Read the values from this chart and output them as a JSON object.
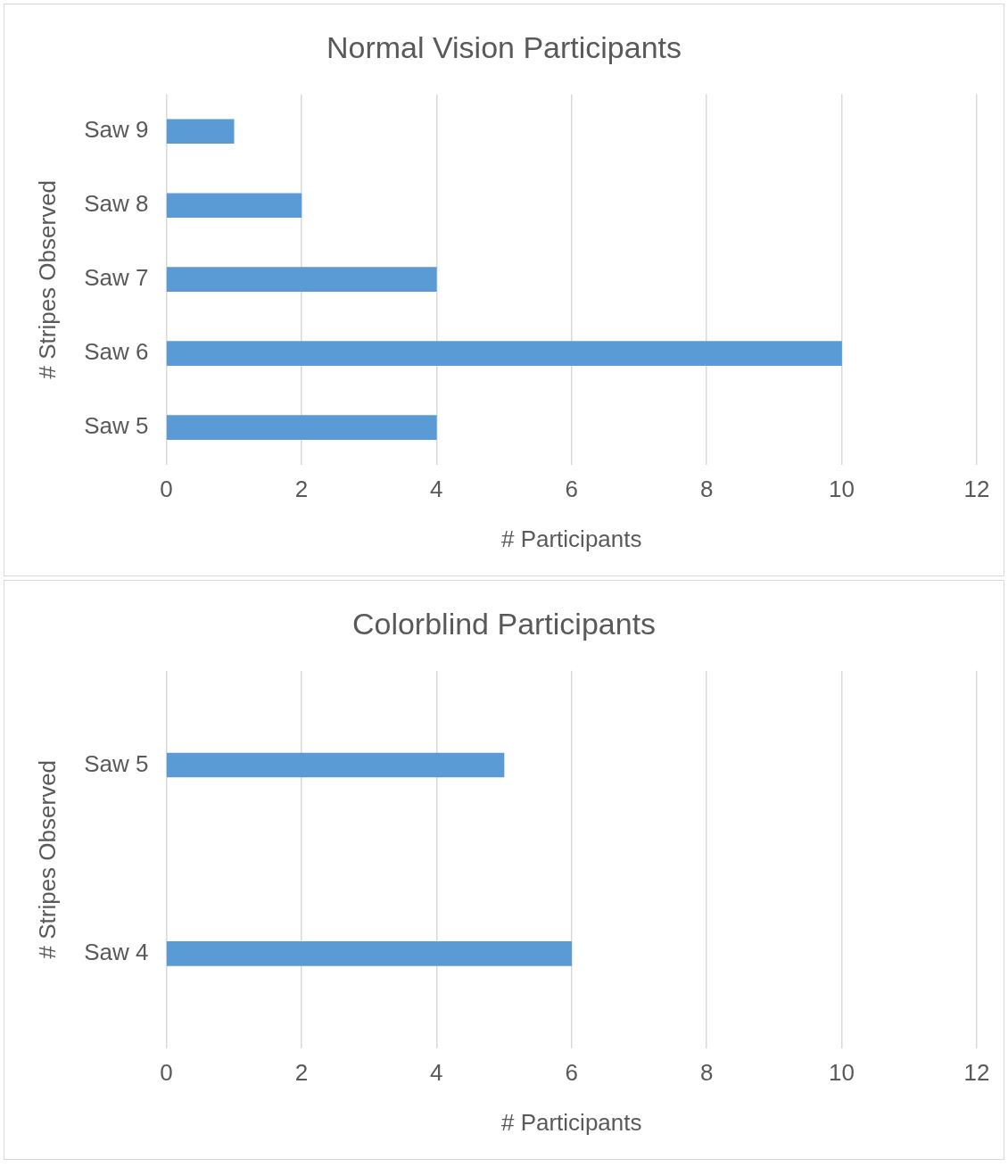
{
  "chart_data": [
    {
      "type": "bar",
      "orientation": "horizontal",
      "title": "Normal Vision Participants",
      "xlabel": "# Participants",
      "ylabel": "# Stripes Observed",
      "categories": [
        "Saw 9",
        "Saw 8",
        "Saw 7",
        "Saw 6",
        "Saw 5"
      ],
      "values": [
        1,
        2,
        4,
        10,
        4
      ],
      "color": "#5b9bd5",
      "xlim": [
        0,
        12
      ],
      "xticks": [
        0,
        2,
        4,
        6,
        8,
        10,
        12
      ],
      "grid": "x"
    },
    {
      "type": "bar",
      "orientation": "horizontal",
      "title": "Colorblind Participants",
      "xlabel": "# Participants",
      "ylabel": "# Stripes Observed",
      "categories": [
        "Saw 5",
        "Saw 4"
      ],
      "values": [
        5,
        6
      ],
      "color": "#5b9bd5",
      "xlim": [
        0,
        12
      ],
      "xticks": [
        0,
        2,
        4,
        6,
        8,
        10,
        12
      ],
      "grid": "x"
    }
  ]
}
